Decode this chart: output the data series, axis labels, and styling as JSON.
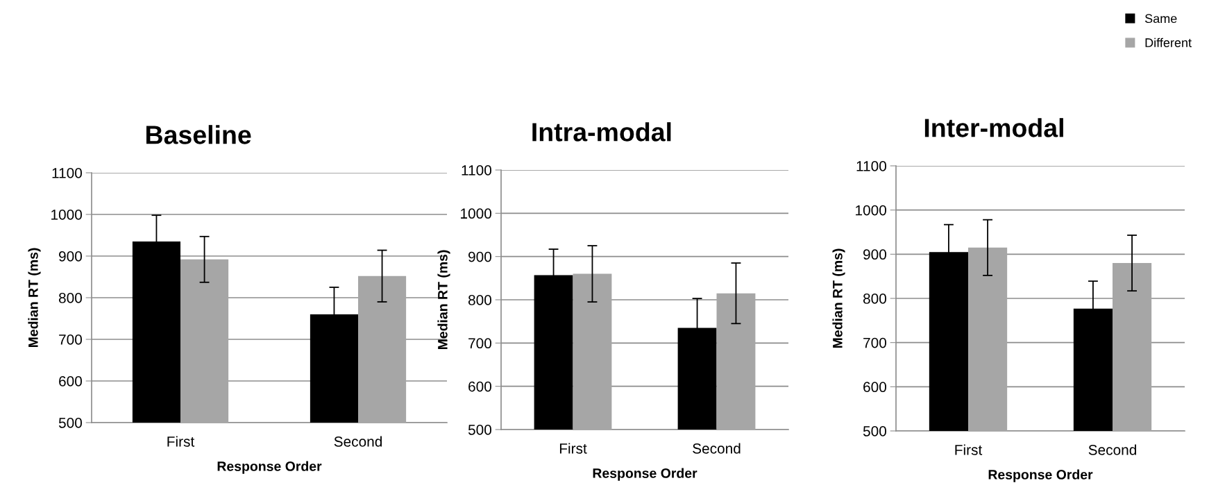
{
  "chart_data": [
    {
      "type": "bar",
      "title": "Baseline",
      "xlabel": "Response Order",
      "ylabel": "Median RT (ms)",
      "categories": [
        "First",
        "Second"
      ],
      "ylim": [
        500,
        1100
      ],
      "yticks": [
        500,
        600,
        700,
        800,
        900,
        1000,
        1100
      ],
      "grid": "y",
      "legend": "top right",
      "series": [
        {
          "name": "Same",
          "color": "#000000",
          "values": [
            935,
            760
          ],
          "errors": [
            63,
            65
          ]
        },
        {
          "name": "Different",
          "color": "#a6a6a6",
          "values": [
            892,
            852
          ],
          "errors": [
            55,
            62
          ]
        }
      ]
    },
    {
      "type": "bar",
      "title": "Intra-modal",
      "xlabel": "Response Order",
      "ylabel": "Median RT (ms)",
      "categories": [
        "First",
        "Second"
      ],
      "ylim": [
        500,
        1100
      ],
      "yticks": [
        500,
        600,
        700,
        800,
        900,
        1000,
        1100
      ],
      "grid": "y",
      "series": [
        {
          "color": "#000000",
          "values": [
            857,
            735
          ],
          "errors": [
            60,
            68
          ]
        },
        {
          "color": "#a6a6a6",
          "values": [
            860,
            815
          ],
          "errors": [
            65,
            70
          ]
        }
      ]
    },
    {
      "type": "bar",
      "title": "Inter-modal",
      "xlabel": "Response Order",
      "ylabel": "Median RT (ms)",
      "categories": [
        "First",
        "Second"
      ],
      "ylim": [
        500,
        1100
      ],
      "yticks": [
        500,
        600,
        700,
        800,
        900,
        1000,
        1100
      ],
      "grid": "y",
      "series": [
        {
          "color": "#000000",
          "values": [
            905,
            777
          ],
          "errors": [
            62,
            62
          ]
        },
        {
          "color": "#a6a6a6",
          "values": [
            915,
            880
          ],
          "errors": [
            63,
            63
          ]
        }
      ]
    }
  ]
}
